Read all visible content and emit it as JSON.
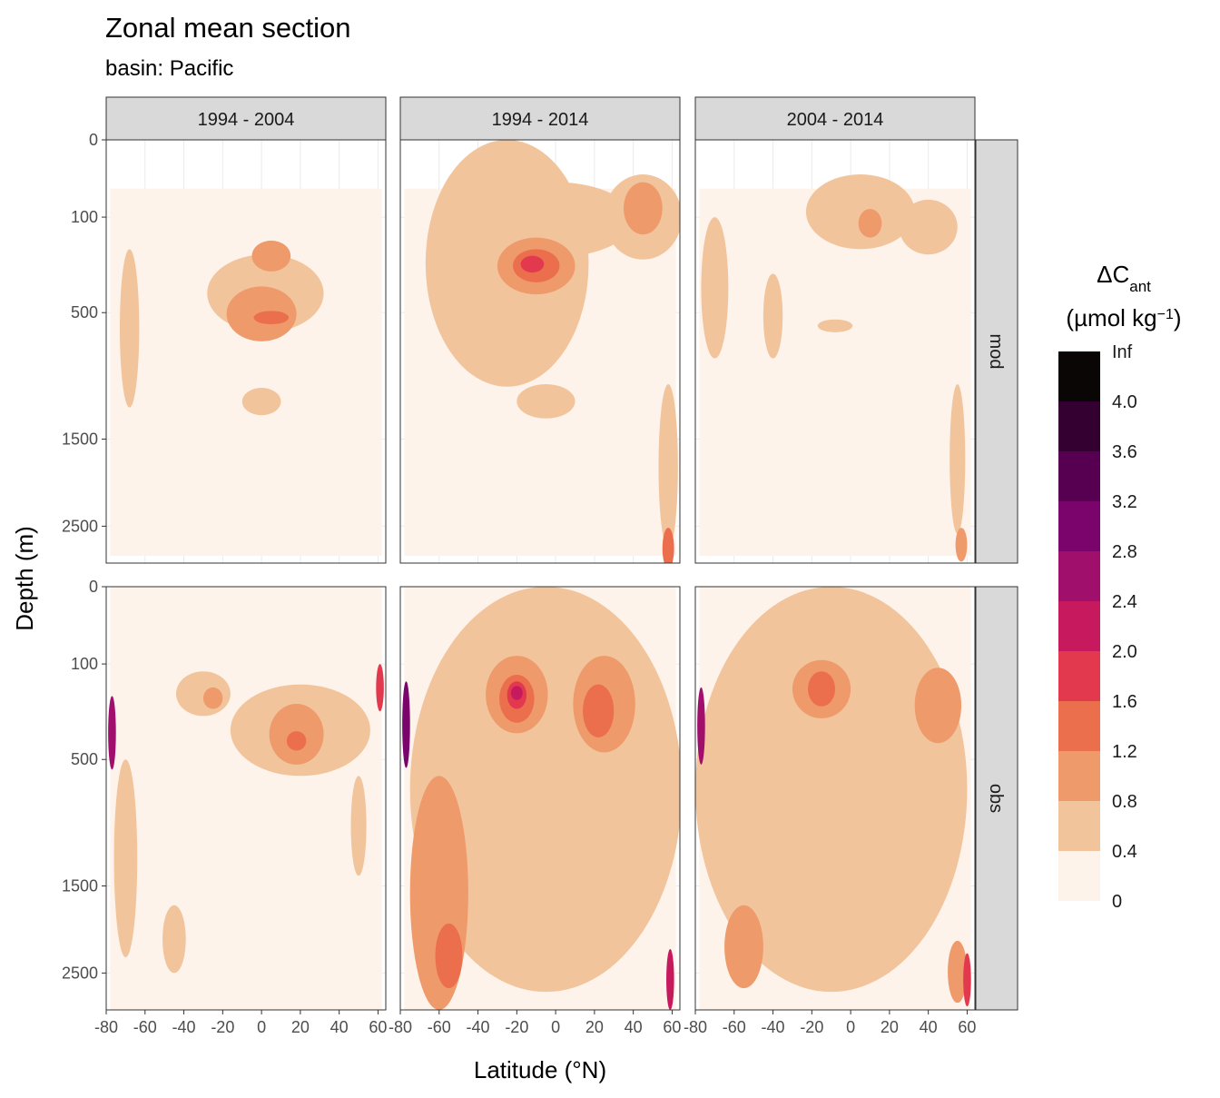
{
  "chart_data": {
    "type": "heatmap",
    "title": "Zonal mean section",
    "subtitle": "basin: Pacific",
    "xlabel": "Latitude (°N)",
    "ylabel": "Depth (m)",
    "xlim": [
      -80,
      64
    ],
    "x_ticks": [
      -80,
      -60,
      -40,
      -20,
      0,
      20,
      40,
      60
    ],
    "x_tick_labels": [
      "-80",
      "-60",
      "-40",
      "-20",
      "0",
      "20",
      "40",
      "60"
    ],
    "y_ticks": [
      0,
      100,
      500,
      1500,
      2500
    ],
    "y_tick_labels": [
      "0",
      "100",
      "500",
      "1500",
      "2500"
    ],
    "y_scale": "sqrt, reversed",
    "ylim": [
      0,
      3000
    ],
    "facet_columns": [
      "1994 - 2004",
      "1994 - 2014",
      "2004 - 2014"
    ],
    "facet_rows": [
      "mod",
      "obs"
    ],
    "legend": {
      "title_main": "ΔC",
      "title_sub": "ant",
      "unit_prefix": "(µmol kg",
      "unit_exp": "−1",
      "unit_suffix": ")",
      "placement": "right",
      "breaks": [
        "0",
        "0.4",
        "0.8",
        "1.2",
        "1.6",
        "2.0",
        "2.4",
        "2.8",
        "3.2",
        "3.6",
        "4.0",
        "Inf"
      ],
      "colors": [
        "#fdf3eb",
        "#f2c49c",
        "#ee9a6b",
        "#eb6e4d",
        "#e3394f",
        "#c7195e",
        "#a00f6c",
        "#7b046c",
        "#570051",
        "#340032",
        "#0a0606"
      ]
    },
    "panels": [
      {
        "col": 0,
        "row": 0,
        "blobs": [
          {
            "level": 1,
            "lat": 2,
            "depth": 420,
            "rx": 30,
            "ry": 200
          },
          {
            "level": 1,
            "lat": -68,
            "depth": 700,
            "rx": 5,
            "ry": 500
          },
          {
            "level": 1,
            "lat": 0,
            "depth": 1150,
            "rx": 10,
            "ry": 120
          },
          {
            "level": 2,
            "lat": 5,
            "depth": 230,
            "rx": 10,
            "ry": 60
          },
          {
            "level": 2,
            "lat": 0,
            "depth": 520,
            "rx": 18,
            "ry": 160
          },
          {
            "level": 3,
            "lat": 5,
            "depth": 530,
            "rx": 9,
            "ry": 40
          }
        ]
      },
      {
        "col": 1,
        "row": 0,
        "blobs": [
          {
            "level": 1,
            "lat": -25,
            "depth": 500,
            "rx": 42,
            "ry": 520
          },
          {
            "level": 1,
            "lat": 0,
            "depth": 130,
            "rx": 40,
            "ry": 100
          },
          {
            "level": 1,
            "lat": 45,
            "depth": 130,
            "rx": 20,
            "ry": 110
          },
          {
            "level": 1,
            "lat": 58,
            "depth": 1900,
            "rx": 5,
            "ry": 900
          },
          {
            "level": 1,
            "lat": -5,
            "depth": 1150,
            "rx": 15,
            "ry": 150
          },
          {
            "level": 2,
            "lat": -10,
            "depth": 280,
            "rx": 20,
            "ry": 120
          },
          {
            "level": 2,
            "lat": 45,
            "depth": 90,
            "rx": 10,
            "ry": 60
          },
          {
            "level": 3,
            "lat": -10,
            "depth": 270,
            "rx": 12,
            "ry": 70
          },
          {
            "level": 3,
            "lat": 58,
            "depth": 2800,
            "rx": 3,
            "ry": 280
          },
          {
            "level": 4,
            "lat": -12,
            "depth": 260,
            "rx": 6,
            "ry": 35
          }
        ]
      },
      {
        "col": 2,
        "row": 0,
        "blobs": [
          {
            "level": 1,
            "lat": 5,
            "depth": 110,
            "rx": 28,
            "ry": 90
          },
          {
            "level": 1,
            "lat": -70,
            "depth": 450,
            "rx": 7,
            "ry": 350
          },
          {
            "level": 1,
            "lat": -40,
            "depth": 550,
            "rx": 5,
            "ry": 250
          },
          {
            "level": 1,
            "lat": 55,
            "depth": 1800,
            "rx": 4,
            "ry": 800
          },
          {
            "level": 1,
            "lat": 40,
            "depth": 140,
            "rx": 15,
            "ry": 80
          },
          {
            "level": 1,
            "lat": -8,
            "depth": 580,
            "rx": 9,
            "ry": 40
          },
          {
            "level": 2,
            "lat": 10,
            "depth": 120,
            "rx": 6,
            "ry": 40
          },
          {
            "level": 2,
            "lat": 57,
            "depth": 2750,
            "rx": 3,
            "ry": 230
          }
        ]
      },
      {
        "col": 0,
        "row": 1,
        "blobs": [
          {
            "level": 1,
            "lat": 20,
            "depth": 380,
            "rx": 36,
            "ry": 220
          },
          {
            "level": 1,
            "lat": -70,
            "depth": 1400,
            "rx": 6,
            "ry": 900
          },
          {
            "level": 1,
            "lat": -45,
            "depth": 2100,
            "rx": 6,
            "ry": 400
          },
          {
            "level": 1,
            "lat": -30,
            "depth": 200,
            "rx": 14,
            "ry": 80
          },
          {
            "level": 1,
            "lat": 50,
            "depth": 1000,
            "rx": 4,
            "ry": 400
          },
          {
            "level": 2,
            "lat": 18,
            "depth": 380,
            "rx": 14,
            "ry": 150
          },
          {
            "level": 2,
            "lat": -25,
            "depth": 210,
            "rx": 5,
            "ry": 40
          },
          {
            "level": 3,
            "lat": 18,
            "depth": 400,
            "rx": 5,
            "ry": 50
          },
          {
            "level": 4,
            "lat": 61,
            "depth": 180,
            "rx": 2,
            "ry": 80
          },
          {
            "level": 6,
            "lat": -77,
            "depth": 380,
            "rx": 2,
            "ry": 180
          }
        ]
      },
      {
        "col": 1,
        "row": 1,
        "blobs": [
          {
            "level": 1,
            "lat": -5,
            "depth": 1250,
            "rx": 70,
            "ry": 1500
          },
          {
            "level": 2,
            "lat": -60,
            "depth": 1800,
            "rx": 15,
            "ry": 1200
          },
          {
            "level": 2,
            "lat": -20,
            "depth": 220,
            "rx": 16,
            "ry": 140
          },
          {
            "level": 2,
            "lat": 25,
            "depth": 270,
            "rx": 16,
            "ry": 190
          },
          {
            "level": 3,
            "lat": -20,
            "depth": 220,
            "rx": 9,
            "ry": 90
          },
          {
            "level": 3,
            "lat": 22,
            "depth": 270,
            "rx": 8,
            "ry": 110
          },
          {
            "level": 3,
            "lat": -55,
            "depth": 2300,
            "rx": 7,
            "ry": 400
          },
          {
            "level": 4,
            "lat": -20,
            "depth": 200,
            "rx": 5,
            "ry": 50
          },
          {
            "level": 5,
            "lat": -20,
            "depth": 190,
            "rx": 3,
            "ry": 25
          },
          {
            "level": 5,
            "lat": 59,
            "depth": 2600,
            "rx": 2,
            "ry": 400
          },
          {
            "level": 7,
            "lat": -77,
            "depth": 350,
            "rx": 2,
            "ry": 200
          }
        ]
      },
      {
        "col": 2,
        "row": 1,
        "blobs": [
          {
            "level": 1,
            "lat": -10,
            "depth": 1250,
            "rx": 70,
            "ry": 1500
          },
          {
            "level": 2,
            "lat": -55,
            "depth": 2200,
            "rx": 10,
            "ry": 500
          },
          {
            "level": 2,
            "lat": -15,
            "depth": 190,
            "rx": 15,
            "ry": 100
          },
          {
            "level": 2,
            "lat": 45,
            "depth": 260,
            "rx": 12,
            "ry": 150
          },
          {
            "level": 2,
            "lat": 55,
            "depth": 2500,
            "rx": 5,
            "ry": 400
          },
          {
            "level": 3,
            "lat": -15,
            "depth": 180,
            "rx": 7,
            "ry": 60
          },
          {
            "level": 4,
            "lat": 60,
            "depth": 2600,
            "rx": 2,
            "ry": 350
          },
          {
            "level": 6,
            "lat": -77,
            "depth": 350,
            "rx": 2,
            "ry": 180
          }
        ]
      }
    ]
  }
}
